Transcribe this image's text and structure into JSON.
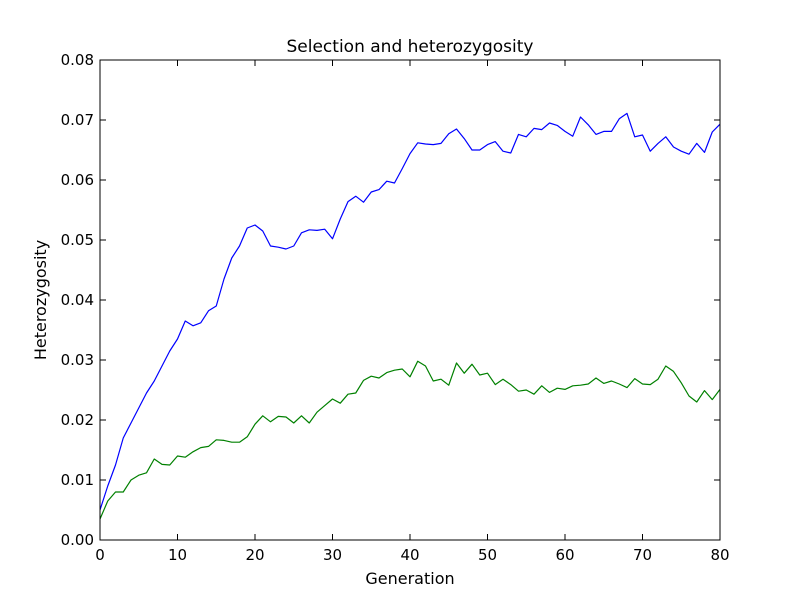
{
  "chart_data": {
    "type": "line",
    "title": "Selection and heterozygosity",
    "xlabel": "Generation",
    "ylabel": "Heterozygosity",
    "xlim": [
      0,
      80
    ],
    "ylim": [
      0,
      0.08
    ],
    "xticks": [
      0,
      10,
      20,
      30,
      40,
      50,
      60,
      70,
      80
    ],
    "xtick_labels": [
      "0",
      "10",
      "20",
      "30",
      "40",
      "50",
      "60",
      "70",
      "80"
    ],
    "yticks": [
      0.0,
      0.01,
      0.02,
      0.03,
      0.04,
      0.05,
      0.06,
      0.07,
      0.08
    ],
    "ytick_labels": [
      "0.00",
      "0.01",
      "0.02",
      "0.03",
      "0.04",
      "0.05",
      "0.06",
      "0.07",
      "0.08"
    ],
    "grid": false,
    "x": [
      0,
      1,
      2,
      3,
      4,
      5,
      6,
      7,
      8,
      9,
      10,
      11,
      12,
      13,
      14,
      15,
      16,
      17,
      18,
      19,
      20,
      21,
      22,
      23,
      24,
      25,
      26,
      27,
      28,
      29,
      30,
      31,
      32,
      33,
      34,
      35,
      36,
      37,
      38,
      39,
      40,
      41,
      42,
      43,
      44,
      45,
      46,
      47,
      48,
      49,
      50,
      51,
      52,
      53,
      54,
      55,
      56,
      57,
      58,
      59,
      60,
      61,
      62,
      63,
      64,
      65,
      66,
      67,
      68,
      69,
      70,
      71,
      72,
      73,
      74,
      75,
      76,
      77,
      78,
      79,
      80
    ],
    "series": [
      {
        "color": "#0000ff",
        "values": [
          0.005,
          0.009,
          0.0125,
          0.017,
          0.0195,
          0.022,
          0.0245,
          0.0265,
          0.029,
          0.0315,
          0.0335,
          0.0365,
          0.0357,
          0.0362,
          0.0382,
          0.039,
          0.0435,
          0.047,
          0.049,
          0.052,
          0.0525,
          0.0515,
          0.049,
          0.0488,
          0.0485,
          0.049,
          0.0512,
          0.0517,
          0.0516,
          0.0518,
          0.0502,
          0.0535,
          0.0564,
          0.0573,
          0.0563,
          0.058,
          0.0584,
          0.0598,
          0.0595,
          0.0619,
          0.0644,
          0.0662,
          0.066,
          0.0659,
          0.0661,
          0.0677,
          0.0685,
          0.0669,
          0.065,
          0.065,
          0.0659,
          0.0664,
          0.0648,
          0.0645,
          0.0676,
          0.0672,
          0.0686,
          0.0684,
          0.0695,
          0.0691,
          0.0681,
          0.0673,
          0.0705,
          0.0692,
          0.0676,
          0.0681,
          0.0681,
          0.0702,
          0.0711,
          0.0672,
          0.0675,
          0.0648,
          0.0661,
          0.0672,
          0.0655,
          0.0648,
          0.0643,
          0.0661,
          0.0646,
          0.068,
          0.0693
        ]
      },
      {
        "color": "#008000",
        "values": [
          0.0035,
          0.0065,
          0.008,
          0.008,
          0.01,
          0.0108,
          0.0112,
          0.0135,
          0.0126,
          0.0125,
          0.014,
          0.0138,
          0.0147,
          0.0154,
          0.0156,
          0.0167,
          0.0166,
          0.0163,
          0.0163,
          0.0172,
          0.0193,
          0.0207,
          0.0197,
          0.0206,
          0.0205,
          0.0195,
          0.0207,
          0.0195,
          0.0213,
          0.0224,
          0.0235,
          0.0228,
          0.0243,
          0.0245,
          0.0266,
          0.0273,
          0.027,
          0.0279,
          0.0283,
          0.0285,
          0.0272,
          0.0298,
          0.029,
          0.0265,
          0.0268,
          0.0258,
          0.0295,
          0.0278,
          0.0293,
          0.0275,
          0.0278,
          0.0259,
          0.0268,
          0.0259,
          0.0248,
          0.025,
          0.0243,
          0.0257,
          0.0246,
          0.0253,
          0.0251,
          0.0257,
          0.0258,
          0.026,
          0.027,
          0.0261,
          0.0265,
          0.026,
          0.0254,
          0.0269,
          0.026,
          0.0259,
          0.0268,
          0.029,
          0.0281,
          0.0262,
          0.024,
          0.023,
          0.0249,
          0.0234,
          0.0251
        ]
      }
    ]
  }
}
